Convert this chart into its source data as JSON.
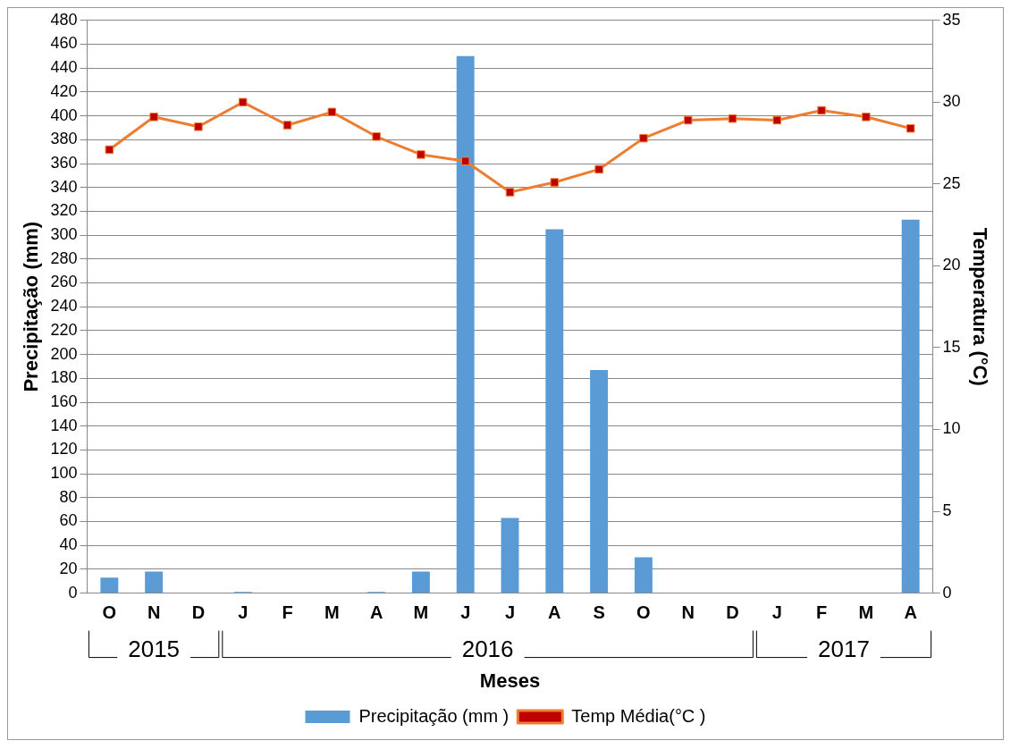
{
  "chart_data": {
    "type": "bar",
    "categories": [
      "O",
      "N",
      "D",
      "J",
      "F",
      "M",
      "A",
      "M",
      "J",
      "J",
      "A",
      "S",
      "O",
      "N",
      "D",
      "J",
      "F",
      "M",
      "A"
    ],
    "series": [
      {
        "name": "Precipitação (mm )",
        "color": "#5b9bd5",
        "values": [
          13,
          18,
          0,
          1,
          0,
          0,
          1,
          18,
          450,
          63,
          305,
          187,
          30,
          0,
          0,
          0,
          0,
          0,
          313
        ]
      },
      {
        "name": "Temp Média(°C )",
        "type": "line",
        "axis": "y2",
        "color": "#ed7d31",
        "marker": "square",
        "values": [
          27.1,
          29.1,
          28.5,
          30.0,
          28.6,
          29.4,
          27.9,
          26.8,
          26.4,
          24.5,
          25.1,
          25.9,
          27.8,
          28.9,
          29.0,
          28.9,
          29.5,
          29.1,
          28.4
        ]
      }
    ],
    "xlabel": "Meses",
    "ylabel": "Precipitação (mm)",
    "y2label": "Temperatura (°C)",
    "ylim": [
      0,
      480
    ],
    "yticks": [
      0,
      20,
      40,
      60,
      80,
      100,
      120,
      140,
      160,
      180,
      200,
      220,
      240,
      260,
      280,
      300,
      320,
      340,
      360,
      380,
      400,
      420,
      440,
      460,
      480
    ],
    "y2lim": [
      0,
      35
    ],
    "y2ticks": [
      0,
      5,
      10,
      15,
      20,
      25,
      30,
      35
    ],
    "annotations": [
      "2015",
      "2016",
      "2017"
    ],
    "grid": "y",
    "legend": "bottom"
  }
}
